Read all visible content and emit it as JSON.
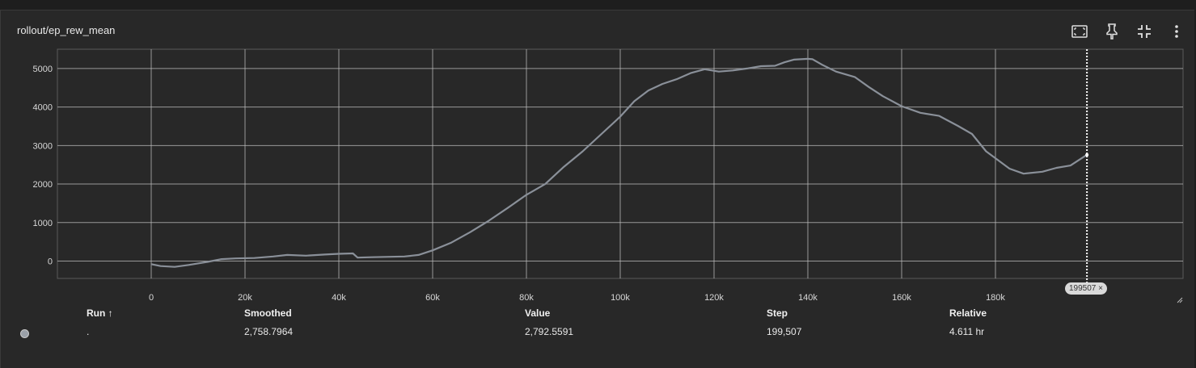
{
  "card": {
    "title": "rollout/ep_rew_mean",
    "toolbar_icons": [
      "fit-domain-icon",
      "pin-icon",
      "collapse-icon",
      "more-vert-icon"
    ]
  },
  "chart_data": {
    "type": "line",
    "title": "rollout/ep_rew_mean",
    "xlabel": "",
    "ylabel": "",
    "xlim": [
      -20000,
      220000
    ],
    "ylim": [
      -450,
      5500
    ],
    "x_ticks": [
      "0",
      "20k",
      "40k",
      "60k",
      "80k",
      "100k",
      "120k",
      "140k",
      "160k",
      "180k"
    ],
    "y_ticks": [
      "0",
      "1000",
      "2000",
      "3000",
      "4000",
      "5000"
    ],
    "x_tick_values": [
      0,
      20000,
      40000,
      60000,
      80000,
      100000,
      120000,
      140000,
      160000,
      180000
    ],
    "y_tick_values": [
      0,
      1000,
      2000,
      3000,
      4000,
      5000
    ],
    "grid": true,
    "series": [
      {
        "color": "#8a9099",
        "x": [
          0,
          2000,
          5000,
          8000,
          12000,
          15000,
          18000,
          22000,
          26000,
          29000,
          33000,
          37000,
          40000,
          43000,
          44000,
          47000,
          50000,
          54000,
          57000,
          60000,
          64000,
          68000,
          72000,
          76000,
          80000,
          84000,
          88000,
          92000,
          96000,
          100000,
          103000,
          106000,
          109000,
          112000,
          115000,
          118000,
          121000,
          124000,
          127000,
          130000,
          133000,
          135000,
          137000,
          140000,
          141000,
          143000,
          146000,
          150000,
          153000,
          156000,
          160000,
          164000,
          168000,
          172000,
          175000,
          178000,
          181000,
          183000,
          186000,
          190000,
          193000,
          196000,
          199507
        ],
        "y": [
          -80,
          -130,
          -150,
          -100,
          -20,
          50,
          70,
          80,
          120,
          160,
          140,
          170,
          190,
          200,
          90,
          100,
          110,
          120,
          160,
          280,
          480,
          750,
          1050,
          1380,
          1720,
          2000,
          2450,
          2850,
          3300,
          3750,
          4150,
          4430,
          4600,
          4720,
          4880,
          4980,
          4920,
          4950,
          5000,
          5060,
          5070,
          5160,
          5230,
          5250,
          5240,
          5100,
          4920,
          4780,
          4520,
          4280,
          4020,
          3850,
          3770,
          3510,
          3300,
          2850,
          2580,
          2400,
          2270,
          2320,
          2420,
          2480,
          2758.7964
        ]
      }
    ],
    "cursor_step": 199507,
    "cursor_label": "199507",
    "cursor_close": "×"
  },
  "table": {
    "headers": {
      "run": "Run ↑",
      "smoothed": "Smoothed",
      "value": "Value",
      "step": "Step",
      "relative": "Relative"
    },
    "row": {
      "run": ".",
      "smoothed": "2,758.7964",
      "value": "2,792.5591",
      "step": "199,507",
      "relative": "4.611 hr",
      "color": "#9aa0a8"
    }
  }
}
